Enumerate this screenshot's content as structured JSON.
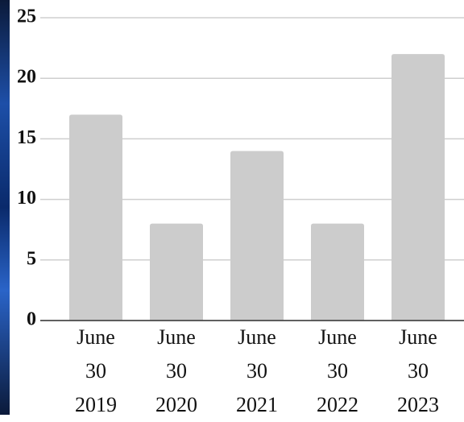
{
  "chart_data": {
    "type": "bar",
    "categories": [
      "June 30 2019",
      "June 30 2020",
      "June 30 2021",
      "June 30 2022",
      "June 30 2023"
    ],
    "values": [
      17,
      8,
      14,
      8,
      22
    ],
    "color": "#cccccc",
    "ylim": [
      0,
      25
    ],
    "yticks": [
      0,
      5,
      10,
      15,
      20,
      25
    ],
    "grid": true
  }
}
